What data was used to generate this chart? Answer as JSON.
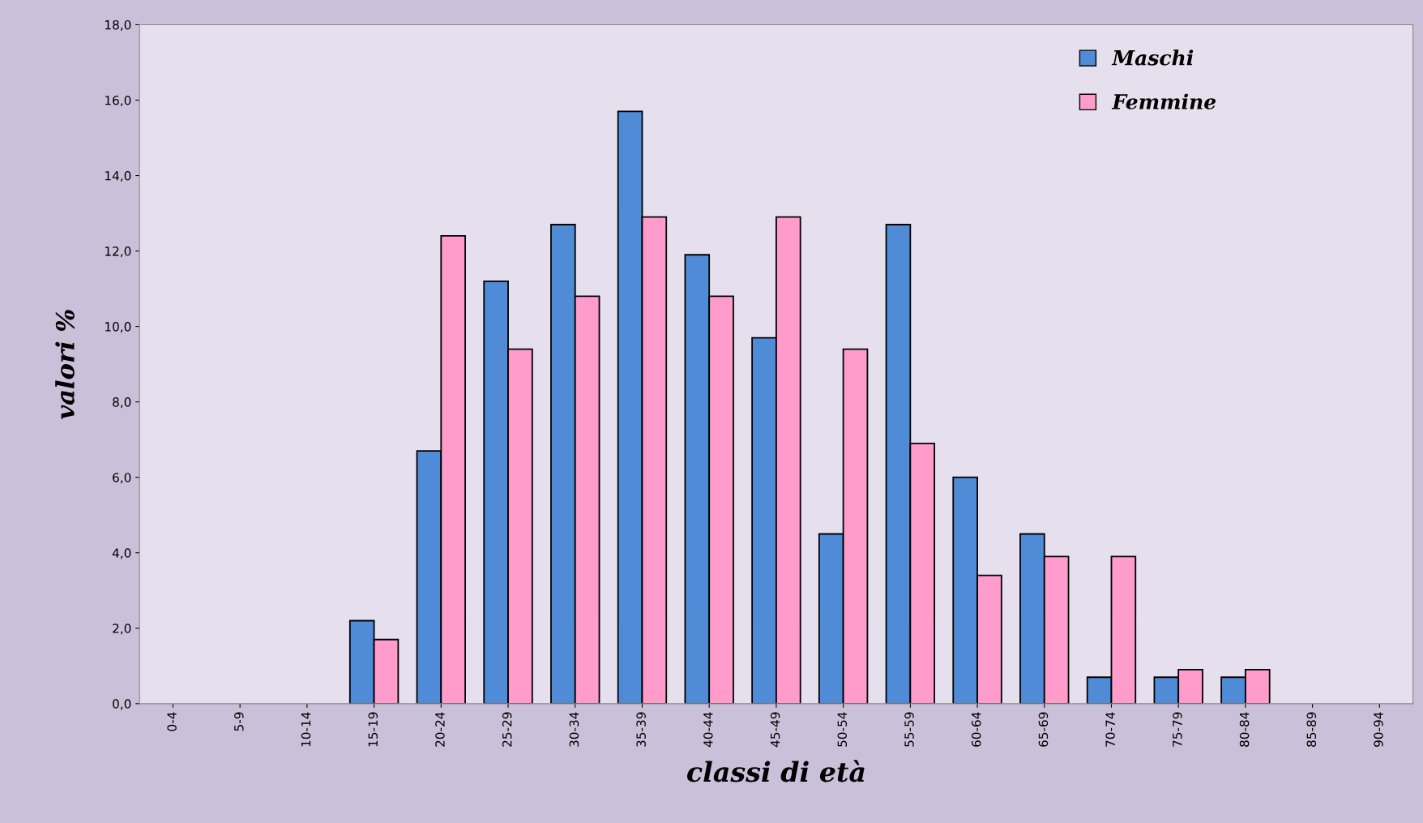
{
  "chart_data": {
    "type": "bar",
    "xlabel": "classi di età",
    "ylabel": "valori %",
    "categories": [
      "0-4",
      "5-9",
      "10-14",
      "15-19",
      "20-24",
      "25-29",
      "30-34",
      "35-39",
      "40-44",
      "45-49",
      "50-54",
      "55-59",
      "60-64",
      "65-69",
      "70-74",
      "75-79",
      "80-84",
      "85-89",
      "90-94"
    ],
    "series": [
      {
        "name": "Maschi",
        "color": "#4f8bd6",
        "values": [
          0,
          0,
          0,
          2.2,
          6.7,
          11.2,
          12.7,
          15.7,
          11.9,
          9.7,
          4.5,
          12.7,
          6.0,
          4.5,
          0.7,
          0.7,
          0.7,
          0,
          0
        ]
      },
      {
        "name": "Femmine",
        "color": "#ff9ccc",
        "values": [
          0,
          0,
          0,
          1.7,
          12.4,
          9.4,
          10.8,
          12.9,
          10.8,
          12.9,
          9.4,
          6.9,
          3.4,
          3.9,
          3.9,
          0.9,
          0.9,
          0,
          0
        ]
      }
    ],
    "ylim": [
      0,
      18
    ],
    "yticks": [
      {
        "value": 0,
        "label": "0,0"
      },
      {
        "value": 2,
        "label": "2,0"
      },
      {
        "value": 4,
        "label": "4,0"
      },
      {
        "value": 6,
        "label": "6,0"
      },
      {
        "value": 8,
        "label": "8,0"
      },
      {
        "value": 10,
        "label": "10,0"
      },
      {
        "value": 12,
        "label": "12,0"
      },
      {
        "value": 14,
        "label": "14,0"
      },
      {
        "value": 16,
        "label": "16,0"
      },
      {
        "value": 18,
        "label": "18,0"
      }
    ],
    "grid": false,
    "legend": "top right"
  }
}
